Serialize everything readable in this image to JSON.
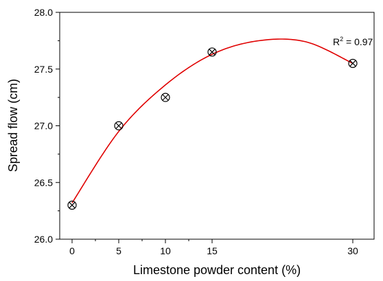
{
  "chart_data": {
    "type": "scatter",
    "xlabel": "Limestone powder content (%)",
    "ylabel": "Spread flow (cm)",
    "x_ticks": [
      "0",
      "5",
      "10",
      "15",
      "30"
    ],
    "y_ticks": [
      "26.0",
      "26.5",
      "27.0",
      "27.5",
      "28.0"
    ],
    "ylim": [
      26.0,
      28.0
    ],
    "grid": false,
    "series": [
      {
        "marker": "circle-x",
        "color": "#000000",
        "points": [
          {
            "x": 0,
            "y": 26.3
          },
          {
            "x": 5,
            "y": 27.0
          },
          {
            "x": 10,
            "y": 27.25
          },
          {
            "x": 15,
            "y": 27.65
          },
          {
            "x": 30,
            "y": 27.55
          }
        ]
      }
    ],
    "fit": {
      "type": "polynomial-2",
      "color": "#e00000",
      "points": [
        {
          "x": 0,
          "y": 26.32
        },
        {
          "x": 5,
          "y": 26.95
        },
        {
          "x": 10,
          "y": 27.36
        },
        {
          "x": 15,
          "y": 27.63
        },
        {
          "x": 20,
          "y": 27.75
        },
        {
          "x": 25,
          "y": 27.74
        },
        {
          "x": 30,
          "y": 27.55
        }
      ]
    },
    "annotation": {
      "base": "R",
      "sup": "2",
      "rest": " = 0.97"
    }
  }
}
